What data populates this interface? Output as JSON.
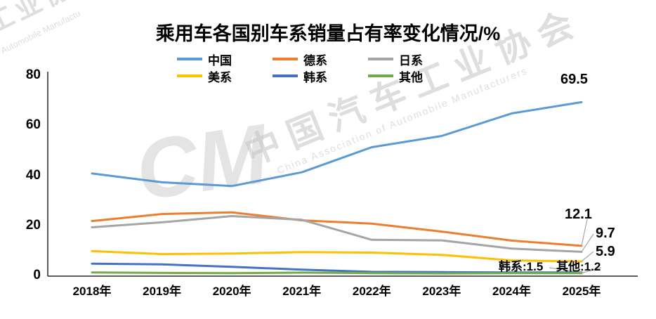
{
  "title": "乘用车各国别车系销量占有率变化情况/%",
  "watermarks": {
    "top_left_cn": "工业协会",
    "top_left_en": "Automobile Manufactu",
    "center_cn": "中国汽车工业协会",
    "center_en": "China Association of Automobile Manufacturers",
    "logo": "CM"
  },
  "chart_data": {
    "type": "line",
    "title": "乘用车各国别车系销量占有率变化情况/%",
    "x": [
      "2018年",
      "2019年",
      "2020年",
      "2021年",
      "2022年",
      "2023年",
      "2024年",
      "2025年"
    ],
    "yticks": [
      0,
      20,
      40,
      60,
      80
    ],
    "ylim": [
      0,
      80
    ],
    "grid": false,
    "legend_position": "top-two-rows",
    "series": [
      {
        "name": "中国",
        "color": "#5B9BD5",
        "values": [
          41,
          37.5,
          36,
          41.5,
          51.5,
          56,
          65,
          69.5
        ]
      },
      {
        "name": "德系",
        "color": "#ED7D31",
        "values": [
          22,
          24.8,
          25.5,
          22.3,
          21,
          17.8,
          14.2,
          12.1
        ]
      },
      {
        "name": "日系",
        "color": "#A5A5A5",
        "values": [
          19.5,
          21.5,
          24,
          22.5,
          14.5,
          14.3,
          11,
          9.7
        ]
      },
      {
        "name": "美系",
        "color": "#FFC000",
        "values": [
          10,
          8.8,
          9,
          9.6,
          9.4,
          8.5,
          6.3,
          5.9
        ]
      },
      {
        "name": "韩系",
        "color": "#4472C4",
        "values": [
          5,
          4.7,
          3.7,
          2.6,
          1.7,
          1.6,
          1.5,
          1.5
        ]
      },
      {
        "name": "其他",
        "color": "#70AD47",
        "values": [
          1.5,
          1.3,
          1.2,
          1.4,
          1.2,
          1.1,
          1.2,
          1.2
        ]
      }
    ],
    "end_labels": {
      "china": "69.5",
      "german": "12.1",
      "japanese": "9.7",
      "american": "5.9",
      "korean": "韩系:1.5",
      "other": "其他:1.2"
    }
  }
}
